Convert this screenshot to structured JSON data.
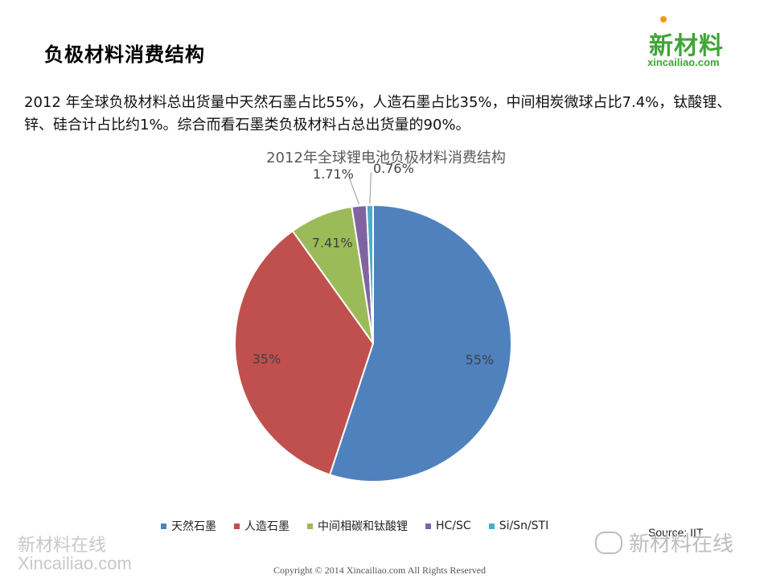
{
  "header": {
    "title": "负极材料消费结构",
    "logo_cn": "新材料",
    "logo_en": "xincailiao.com"
  },
  "summary": "2012 年全球负极材料总出货量中天然石墨占比55%，人造石墨占比35%，中间相炭微球占比7.4%，钛酸锂、锌、硅合计占比约1%。综合而看石墨类负极材料占总出货量的90%。",
  "chart_data": {
    "type": "pie",
    "title": "2012年全球锂电池负极材料消费结构",
    "categories": [
      "天然石墨",
      "人造石墨",
      "中间相碳和钛酸锂",
      "HC/SC",
      "Si/Sn/STI"
    ],
    "values": [
      55,
      35,
      7.41,
      1.71,
      0.76
    ],
    "labels": [
      "55%",
      "35%",
      "7.41%",
      "1.71%",
      "0.76%"
    ],
    "colors": [
      "#4f81bd",
      "#c0504d",
      "#9bbb59",
      "#8064a2",
      "#4bacc6"
    ],
    "legend_position": "bottom",
    "start_angle": "12 o'clock",
    "direction": "clockwise"
  },
  "source": "Source: IIT",
  "watermark": {
    "left_cn": "新材料在线",
    "left_en": "Xincailiao.com",
    "right": "新材料在线"
  },
  "copyright": "Copyright © 2014   Xincailiao.com    All Rights Reserved"
}
